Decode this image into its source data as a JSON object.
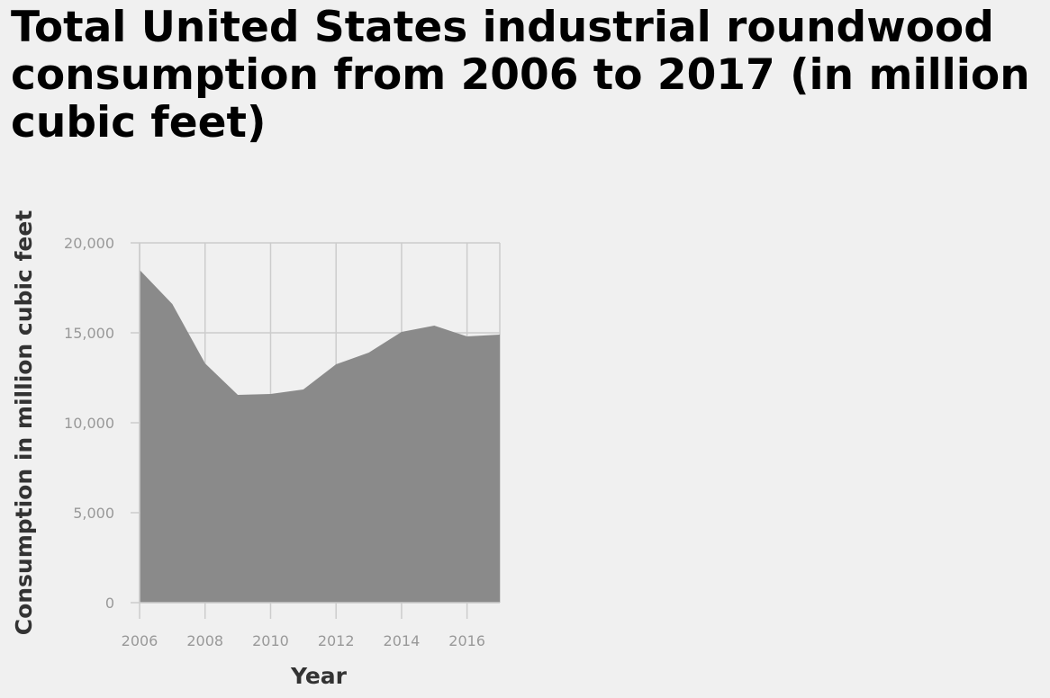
{
  "chart_data": {
    "type": "area",
    "title": "Total United States industrial roundwood consumption from 2006 to 2017 (in million cubic feet)",
    "xlabel": "Year",
    "ylabel": "Consumption in million cubic feet",
    "x": [
      2006,
      2007,
      2008,
      2009,
      2010,
      2011,
      2012,
      2013,
      2014,
      2015,
      2016,
      2017
    ],
    "series": [
      {
        "values": [
          18500,
          16600,
          13300,
          11550,
          11600,
          11850,
          13250,
          13900,
          15050,
          15400,
          14800,
          14900
        ]
      }
    ],
    "xlim": [
      2006,
      2017
    ],
    "ylim": [
      0,
      20000
    ],
    "x_ticks": [
      {
        "value": 2006,
        "label": "2006"
      },
      {
        "value": 2008,
        "label": "2008"
      },
      {
        "value": 2010,
        "label": "2010"
      },
      {
        "value": 2012,
        "label": "2012"
      },
      {
        "value": 2014,
        "label": "2014"
      },
      {
        "value": 2016,
        "label": "2016"
      }
    ],
    "y_ticks": [
      {
        "value": 0,
        "label": "0"
      },
      {
        "value": 5000,
        "label": "5,000"
      },
      {
        "value": 10000,
        "label": "10,000"
      },
      {
        "value": 15000,
        "label": "15,000"
      },
      {
        "value": 20000,
        "label": "20,000"
      }
    ],
    "grid": true,
    "colors": {
      "area_fill": "#8a8a8a",
      "grid": "#cccccc",
      "background": "#f0f0f0"
    }
  }
}
